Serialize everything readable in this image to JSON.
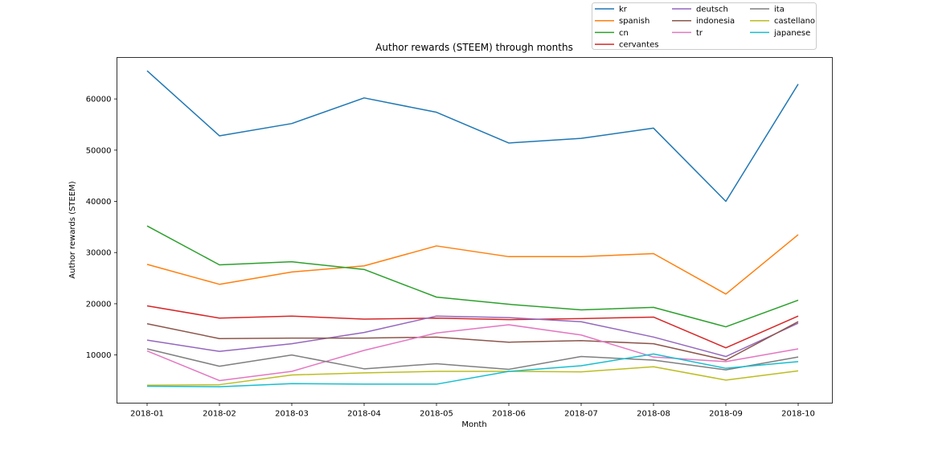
{
  "chart_data": {
    "type": "line",
    "title": "Author rewards (STEEM) through months",
    "xlabel": "Month",
    "ylabel": "Author rewards (STEEM)",
    "categories": [
      "2018-01",
      "2018-02",
      "2018-03",
      "2018-04",
      "2018-05",
      "2018-06",
      "2018-07",
      "2018-08",
      "2018-09",
      "2018-10"
    ],
    "y_ticks": [
      10000,
      20000,
      30000,
      40000,
      50000,
      60000
    ],
    "ylim": [
      600,
      68100
    ],
    "grid": false,
    "legend_position": "top-right outside axes, 3 columns",
    "legend_order_columns": [
      [
        "kr",
        "spanish",
        "cn",
        "cervantes"
      ],
      [
        "deutsch",
        "indonesia",
        "tr"
      ],
      [
        "ita",
        "castellano",
        "japanese"
      ]
    ],
    "series": [
      {
        "name": "kr",
        "color": "#1f77b4",
        "values": [
          65500,
          52800,
          55200,
          60200,
          57400,
          51400,
          52300,
          54300,
          40000,
          62900
        ]
      },
      {
        "name": "spanish",
        "color": "#ff7f0e",
        "values": [
          27700,
          23800,
          26200,
          27400,
          31300,
          29200,
          29200,
          29800,
          21900,
          33500
        ]
      },
      {
        "name": "cn",
        "color": "#2ca02c",
        "values": [
          35200,
          27600,
          28200,
          26700,
          21300,
          19900,
          18800,
          19300,
          15500,
          20700
        ]
      },
      {
        "name": "cervantes",
        "color": "#d62728",
        "values": [
          19600,
          17200,
          17600,
          17000,
          17200,
          16900,
          17100,
          17400,
          11400,
          17600
        ]
      },
      {
        "name": "deutsch",
        "color": "#9467bd",
        "values": [
          12900,
          10700,
          12200,
          14400,
          17600,
          17300,
          16500,
          13500,
          9700,
          16200
        ]
      },
      {
        "name": "indonesia",
        "color": "#8c564b",
        "values": [
          16100,
          13200,
          13300,
          13300,
          13500,
          12500,
          12800,
          12200,
          9000,
          16500
        ]
      },
      {
        "name": "tr",
        "color": "#e377c2",
        "values": [
          10800,
          5000,
          6800,
          10900,
          14300,
          15900,
          13900,
          9600,
          8700,
          11200
        ]
      },
      {
        "name": "ita",
        "color": "#7f7f7f",
        "values": [
          11200,
          7800,
          10000,
          7300,
          8300,
          7200,
          9700,
          9000,
          7100,
          9600
        ]
      },
      {
        "name": "castellano",
        "color": "#bcbd22",
        "values": [
          4100,
          4200,
          6100,
          6500,
          6800,
          6800,
          6700,
          7700,
          5100,
          6900
        ]
      },
      {
        "name": "japanese",
        "color": "#17becf",
        "values": [
          3900,
          3800,
          4400,
          4300,
          4300,
          6800,
          7900,
          10200,
          7400,
          8700
        ]
      }
    ]
  },
  "colors": {
    "background": "#ffffff",
    "text": "#000000",
    "spine": "#000000",
    "legend_border": "#cccccc",
    "legend_background": "#ffffff"
  }
}
